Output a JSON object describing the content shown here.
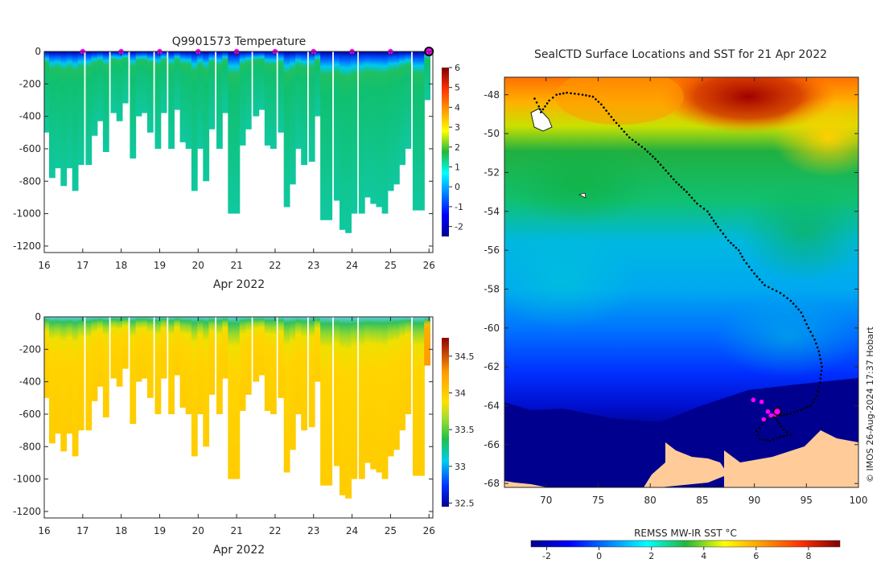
{
  "chart_data": [
    {
      "type": "heatmap",
      "panel": "temperature-profile",
      "title": "Q9901573  Temperature",
      "xlabel": "Apr 2022",
      "ylabel": "",
      "x_ticks": [
        "16",
        "17",
        "18",
        "19",
        "20",
        "21",
        "22",
        "23",
        "24",
        "25",
        "26"
      ],
      "xlim": [
        16,
        26.1
      ],
      "y_ticks": [
        "0",
        "-200",
        "-400",
        "-600",
        "-800",
        "-1000",
        "-1200"
      ],
      "ylim": [
        -1240,
        0
      ],
      "colorbar": {
        "ticks": [
          "-2",
          "-1",
          "0",
          "1",
          "2",
          "3",
          "4",
          "5",
          "6"
        ],
        "range": [
          -2.5,
          6
        ]
      },
      "surfacing_markers_day": [
        17,
        18,
        19,
        20,
        21,
        22,
        23,
        24,
        25
      ],
      "latest_marker_day": 26,
      "profile_days": [
        16.05,
        16.2,
        16.35,
        16.5,
        16.65,
        16.8,
        16.95,
        17.15,
        17.3,
        17.45,
        17.6,
        17.8,
        17.95,
        18.1,
        18.3,
        18.45,
        18.6,
        18.75,
        18.95,
        19.1,
        19.3,
        19.45,
        19.6,
        19.75,
        19.9,
        20.05,
        20.2,
        20.35,
        20.55,
        20.7,
        20.85,
        21.0,
        21.15,
        21.3,
        21.5,
        21.65,
        21.8,
        21.95,
        22.15,
        22.3,
        22.45,
        22.6,
        22.75,
        22.95,
        23.1,
        23.25,
        23.4,
        23.6,
        23.75,
        23.9,
        24.05,
        24.25,
        24.4,
        24.55,
        24.7,
        24.85,
        25.0,
        25.15,
        25.3,
        25.45,
        25.65,
        25.8,
        25.95
      ],
      "profile_max_depth_m": [
        500,
        780,
        720,
        830,
        720,
        860,
        700,
        700,
        520,
        430,
        620,
        380,
        430,
        320,
        660,
        400,
        380,
        500,
        600,
        380,
        600,
        360,
        560,
        600,
        860,
        600,
        800,
        480,
        600,
        380,
        1000,
        1000,
        580,
        480,
        400,
        360,
        580,
        600,
        500,
        960,
        820,
        600,
        700,
        680,
        400,
        1040,
        1040,
        920,
        1100,
        1120,
        1000,
        1000,
        900,
        940,
        960,
        1000,
        860,
        820,
        700,
        600,
        980,
        980,
        300
      ],
      "profile_surface_depth_m": 50,
      "profile_stride_days": 0.15
    },
    {
      "type": "heatmap",
      "panel": "salinity-profile",
      "title": "",
      "xlabel": "Apr 2022",
      "ylabel": "",
      "x_ticks": [
        "16",
        "17",
        "18",
        "19",
        "20",
        "21",
        "22",
        "23",
        "24",
        "25",
        "26"
      ],
      "xlim": [
        16,
        26.1
      ],
      "y_ticks": [
        "0",
        "-200",
        "-400",
        "-600",
        "-800",
        "-1000",
        "-1200"
      ],
      "ylim": [
        -1240,
        0
      ],
      "colorbar": {
        "ticks": [
          "32.5",
          "33",
          "33.5",
          "34",
          "34.5"
        ],
        "range": [
          32.45,
          34.75
        ]
      }
    },
    {
      "type": "map",
      "panel": "sst-map",
      "title": "SealCTD Surface Locations and SST for 21 Apr 2022",
      "x_ticks": [
        "70",
        "75",
        "80",
        "85",
        "90",
        "95",
        "100"
      ],
      "xlim": [
        66,
        100
      ],
      "y_ticks": [
        "-48",
        "-50",
        "-52",
        "-54",
        "-56",
        "-58",
        "-60",
        "-62",
        "-64",
        "-66",
        "-68"
      ],
      "ylim": [
        -68.2,
        -47.1
      ],
      "track_lon_lat": [
        [
          68.9,
          -48.2
        ],
        [
          69.3,
          -48.6
        ],
        [
          69.5,
          -48.9
        ],
        [
          70.3,
          -48.3
        ],
        [
          71.0,
          -48.0
        ],
        [
          72.0,
          -47.9
        ],
        [
          73.5,
          -48.0
        ],
        [
          74.5,
          -48.1
        ],
        [
          75.3,
          -48.5
        ],
        [
          76.5,
          -49.3
        ],
        [
          78.0,
          -50.2
        ],
        [
          79.5,
          -50.8
        ],
        [
          80.5,
          -51.3
        ],
        [
          81.5,
          -51.9
        ],
        [
          82.5,
          -52.5
        ],
        [
          83.5,
          -53.0
        ],
        [
          84.5,
          -53.6
        ],
        [
          85.5,
          -54.0
        ],
        [
          86.5,
          -54.8
        ],
        [
          87.5,
          -55.5
        ],
        [
          88.5,
          -56.0
        ],
        [
          89.0,
          -56.5
        ],
        [
          90.0,
          -57.2
        ],
        [
          91.0,
          -57.8
        ],
        [
          92.5,
          -58.2
        ],
        [
          93.5,
          -58.6
        ],
        [
          94.5,
          -59.2
        ],
        [
          95.2,
          -60.0
        ],
        [
          95.8,
          -60.6
        ],
        [
          96.2,
          -61.2
        ],
        [
          96.5,
          -62.0
        ],
        [
          96.3,
          -62.8
        ],
        [
          96.0,
          -63.5
        ],
        [
          95.4,
          -64.0
        ],
        [
          94.5,
          -64.2
        ],
        [
          93.5,
          -64.4
        ],
        [
          92.5,
          -64.5
        ],
        [
          91.5,
          -64.6
        ],
        [
          91.0,
          -64.8
        ],
        [
          90.2,
          -65.3
        ],
        [
          90.5,
          -65.7
        ],
        [
          91.5,
          -65.8
        ],
        [
          92.5,
          -65.6
        ],
        [
          93.5,
          -65.5
        ],
        [
          92.8,
          -65.2
        ],
        [
          92.0,
          -64.6
        ],
        [
          91.5,
          -64.5
        ]
      ],
      "surfacing_lon_lat": [
        [
          89.9,
          -63.7
        ],
        [
          90.7,
          -63.8
        ],
        [
          91.3,
          -64.3
        ],
        [
          91.6,
          -64.5
        ],
        [
          90.9,
          -64.7
        ],
        [
          92.0,
          -64.45
        ]
      ],
      "latest_lon_lat": [
        92.2,
        -64.3
      ]
    },
    {
      "type": "colorbar",
      "panel": "sst-colorbar",
      "title": "REMSS MW-IR SST °C",
      "ticks": [
        "-2",
        "0",
        "2",
        "4",
        "6",
        "8"
      ],
      "range": [
        -2.6,
        9.2
      ]
    }
  ],
  "credit": "© IMOS 26-Aug-2024 17:37 Hobart",
  "colors": {
    "ocean_dark": "#00008f",
    "land": "#ffcc99",
    "marker": "#ff00ff",
    "track": "#000000"
  }
}
